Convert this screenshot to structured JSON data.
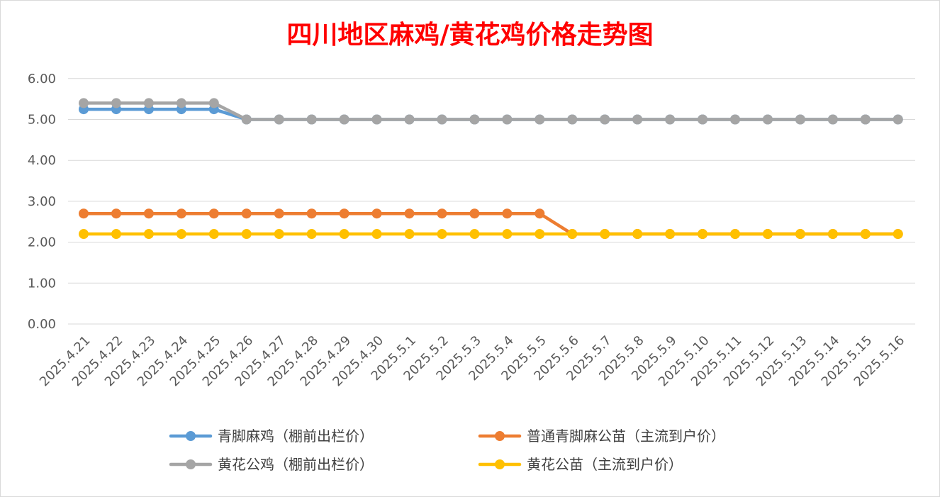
{
  "chart_data": {
    "type": "line",
    "title": "四川地区麻鸡/黄花鸡价格走势图",
    "title_color": "#ff0000",
    "xlabel": "",
    "ylabel": "",
    "ylim": [
      0,
      6
    ],
    "y_ticks": [
      "0.00",
      "1.00",
      "2.00",
      "3.00",
      "4.00",
      "5.00",
      "6.00"
    ],
    "y_tick_values": [
      0,
      1,
      2,
      3,
      4,
      5,
      6
    ],
    "grid": true,
    "legend_position": "bottom",
    "categories": [
      "2025.4.21",
      "2025.4.22",
      "2025.4.23",
      "2025.4.24",
      "2025.4.25",
      "2025.4.26",
      "2025.4.27",
      "2025.4.28",
      "2025.4.29",
      "2025.4.30",
      "2025.5.1",
      "2025.5.2",
      "2025.5.3",
      "2025.5.4",
      "2025.5.5",
      "2025.5.6",
      "2025.5.7",
      "2025.5.8",
      "2025.5.9",
      "2025.5.10",
      "2025.5.11",
      "2025.5.12",
      "2025.5.13",
      "2025.5.14",
      "2025.5.15",
      "2025.5.16"
    ],
    "series": [
      {
        "name": "青脚麻鸡（棚前出栏价）",
        "color": "#5b9bd5",
        "values": [
          5.25,
          5.25,
          5.25,
          5.25,
          5.25,
          5,
          5,
          5,
          5,
          5,
          5,
          5,
          5,
          5,
          5,
          5,
          5,
          5,
          5,
          5,
          5,
          5,
          5,
          5,
          5,
          5
        ]
      },
      {
        "name": "普通青脚麻公苗（主流到户价）",
        "color": "#ed7d31",
        "values": [
          2.7,
          2.7,
          2.7,
          2.7,
          2.7,
          2.7,
          2.7,
          2.7,
          2.7,
          2.7,
          2.7,
          2.7,
          2.7,
          2.7,
          2.7,
          2.2,
          2.2,
          2.2,
          2.2,
          2.2,
          2.2,
          2.2,
          2.2,
          2.2,
          2.2,
          2.2
        ]
      },
      {
        "name": "黄花公鸡（棚前出栏价）",
        "color": "#a5a5a5",
        "values": [
          5.4,
          5.4,
          5.4,
          5.4,
          5.4,
          5,
          5,
          5,
          5,
          5,
          5,
          5,
          5,
          5,
          5,
          5,
          5,
          5,
          5,
          5,
          5,
          5,
          5,
          5,
          5,
          5
        ]
      },
      {
        "name": "黄花公苗（主流到户价）",
        "color": "#ffc000",
        "values": [
          2.2,
          2.2,
          2.2,
          2.2,
          2.2,
          2.2,
          2.2,
          2.2,
          2.2,
          2.2,
          2.2,
          2.2,
          2.2,
          2.2,
          2.2,
          2.2,
          2.2,
          2.2,
          2.2,
          2.2,
          2.2,
          2.2,
          2.2,
          2.2,
          2.2,
          2.2
        ]
      }
    ]
  }
}
